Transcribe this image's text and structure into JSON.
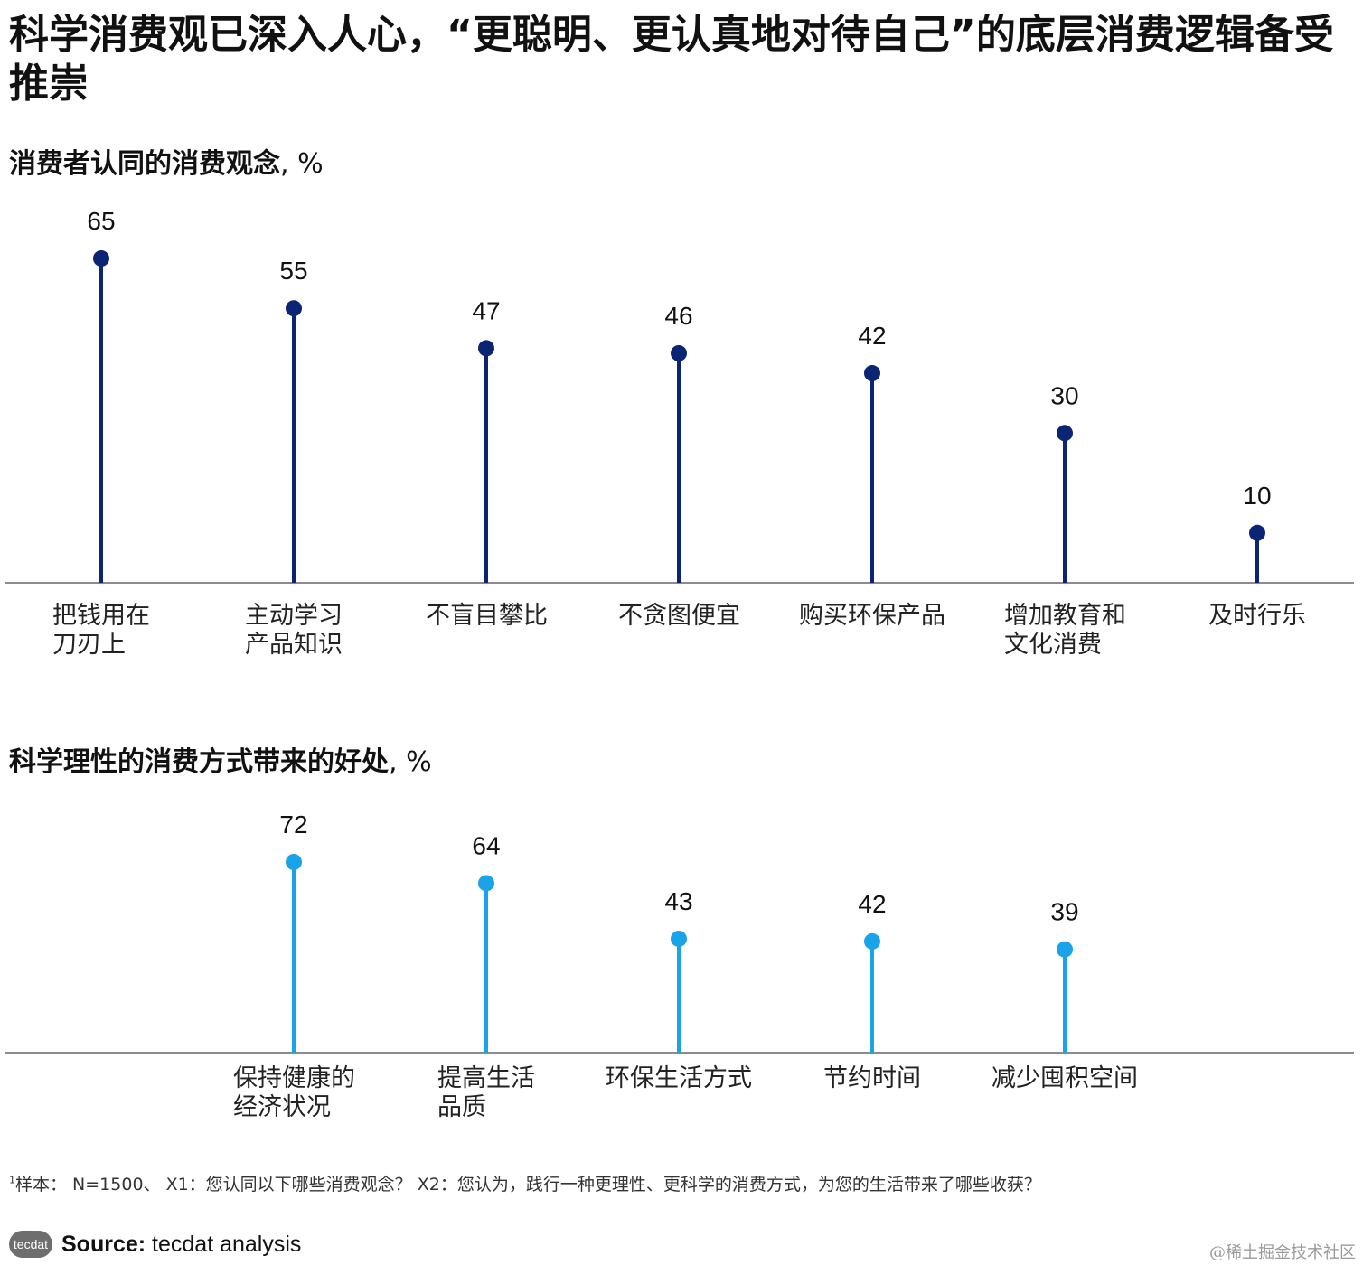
{
  "title": "科学消费观已深入人心，“更聪明、更认真地对待自己”的底层消费逻辑备受推崇",
  "colors": {
    "chart1": "#0b2473",
    "chart2": "#1aa3e8",
    "axis": "#666666"
  },
  "chart_data": [
    {
      "type": "lollipop",
      "title": "消费者认同的消费观念",
      "unit": ", %",
      "categories": [
        [
          "把钱用在",
          "刀刃上"
        ],
        [
          "主动学习",
          "产品知识"
        ],
        [
          "不盲目攀比"
        ],
        [
          "不贪图便宜"
        ],
        [
          "购买环保产品"
        ],
        [
          "增加教育和",
          "文化消费"
        ],
        [
          "及时行乐"
        ]
      ],
      "values": [
        65,
        55,
        47,
        46,
        42,
        30,
        10
      ],
      "ylim": [
        0,
        65
      ]
    },
    {
      "type": "lollipop",
      "title": "科学理性的消费方式带来的好处",
      "unit": ", %",
      "categories": [
        [
          "保持健康的",
          "经济状况"
        ],
        [
          "提高生活",
          "品质"
        ],
        [
          "环保生活方式"
        ],
        [
          "节约时间"
        ],
        [
          "减少囤积空间"
        ]
      ],
      "values": [
        72,
        64,
        43,
        42,
        39
      ],
      "ylim": [
        0,
        72
      ]
    }
  ],
  "footnote": {
    "marker": "1",
    "text": "样本： N=1500、 X1：您认同以下哪些消费观念？ X2：您认为，践行一种更理性、更科学的消费方式，为您的生活带来了哪些收获？"
  },
  "source": {
    "logo": "tecdat",
    "label": "Source:",
    "text": "tecdat analysis"
  },
  "watermark": "@稀土掘金技术社区"
}
